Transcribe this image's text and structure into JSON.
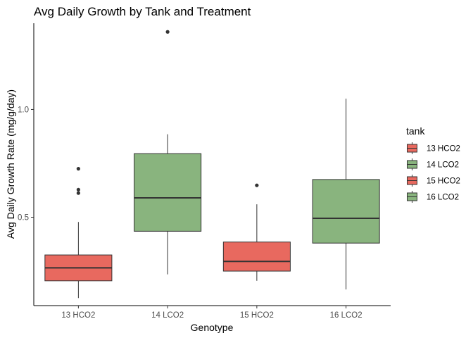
{
  "chart_data": {
    "type": "box",
    "title": "Avg Daily Growth by Tank and Treatment",
    "xlabel": "Genotype",
    "ylabel": "Avg Daily Growth Rate (mg/g/day)",
    "categories": [
      "13 HCO2",
      "14 LCO2",
      "15 HCO2",
      "16 LCO2"
    ],
    "ylim": [
      0.09,
      1.4
    ],
    "yticks": [
      0.5,
      1.0
    ],
    "ytick_labels": [
      "0.5",
      "1.0"
    ],
    "grid": false,
    "legend_position": "right",
    "legend_title": "tank",
    "series": [
      {
        "name": "13 HCO2",
        "color": "#E8695F",
        "whisker_low": 0.125,
        "q1": 0.205,
        "median": 0.265,
        "q3": 0.325,
        "whisker_high": 0.478,
        "outliers": [
          0.612,
          0.628,
          0.725
        ]
      },
      {
        "name": "14 LCO2",
        "color": "#89B47E",
        "whisker_low": 0.235,
        "q1": 0.435,
        "median": 0.59,
        "q3": 0.795,
        "whisker_high": 0.885,
        "outliers": [
          1.36
        ]
      },
      {
        "name": "15 HCO2",
        "color": "#E8695F",
        "whisker_low": 0.205,
        "q1": 0.25,
        "median": 0.295,
        "q3": 0.385,
        "whisker_high": 0.56,
        "outliers": [
          0.648
        ]
      },
      {
        "name": "16 LCO2",
        "color": "#89B47E",
        "whisker_low": 0.165,
        "q1": 0.38,
        "median": 0.495,
        "q3": 0.675,
        "whisker_high": 1.05,
        "outliers": []
      }
    ]
  }
}
